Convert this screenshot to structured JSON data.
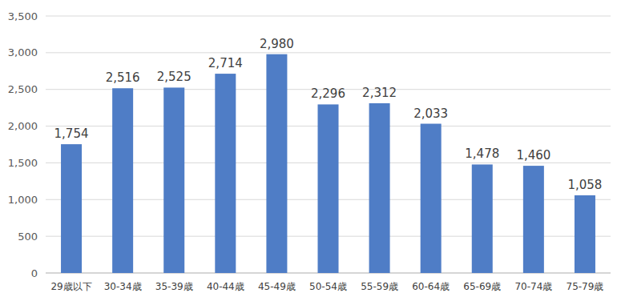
{
  "chart_data": {
    "type": "bar",
    "categories": [
      "29歳以下",
      "30-34歳",
      "35-39歳",
      "40-44歳",
      "45-49歳",
      "50-54歳",
      "55-59歳",
      "60-64歳",
      "65-69歳",
      "70-74歳",
      "75-79歳"
    ],
    "values": [
      1754,
      2516,
      2525,
      2714,
      2980,
      2296,
      2312,
      2033,
      1478,
      1460,
      1058
    ],
    "value_labels": [
      "1,754",
      "2,516",
      "2,525",
      "2,714",
      "2,980",
      "2,296",
      "2,312",
      "2,033",
      "1,478",
      "1,460",
      "1,058"
    ],
    "color": "#4f7dc6",
    "ylim": [
      0,
      3500
    ],
    "yticks": [
      0,
      500,
      {
        "value": 1000,
        "label": "1,000"
      },
      {
        "value": 1500,
        "label": "1,500"
      },
      {
        "value": 2000,
        "label": "2,000"
      },
      {
        "value": 2500,
        "label": "2,500"
      },
      {
        "value": 3000,
        "label": "3,000"
      },
      {
        "value": 3500,
        "label": "3,500"
      }
    ],
    "grid": true,
    "data_labels": true
  }
}
